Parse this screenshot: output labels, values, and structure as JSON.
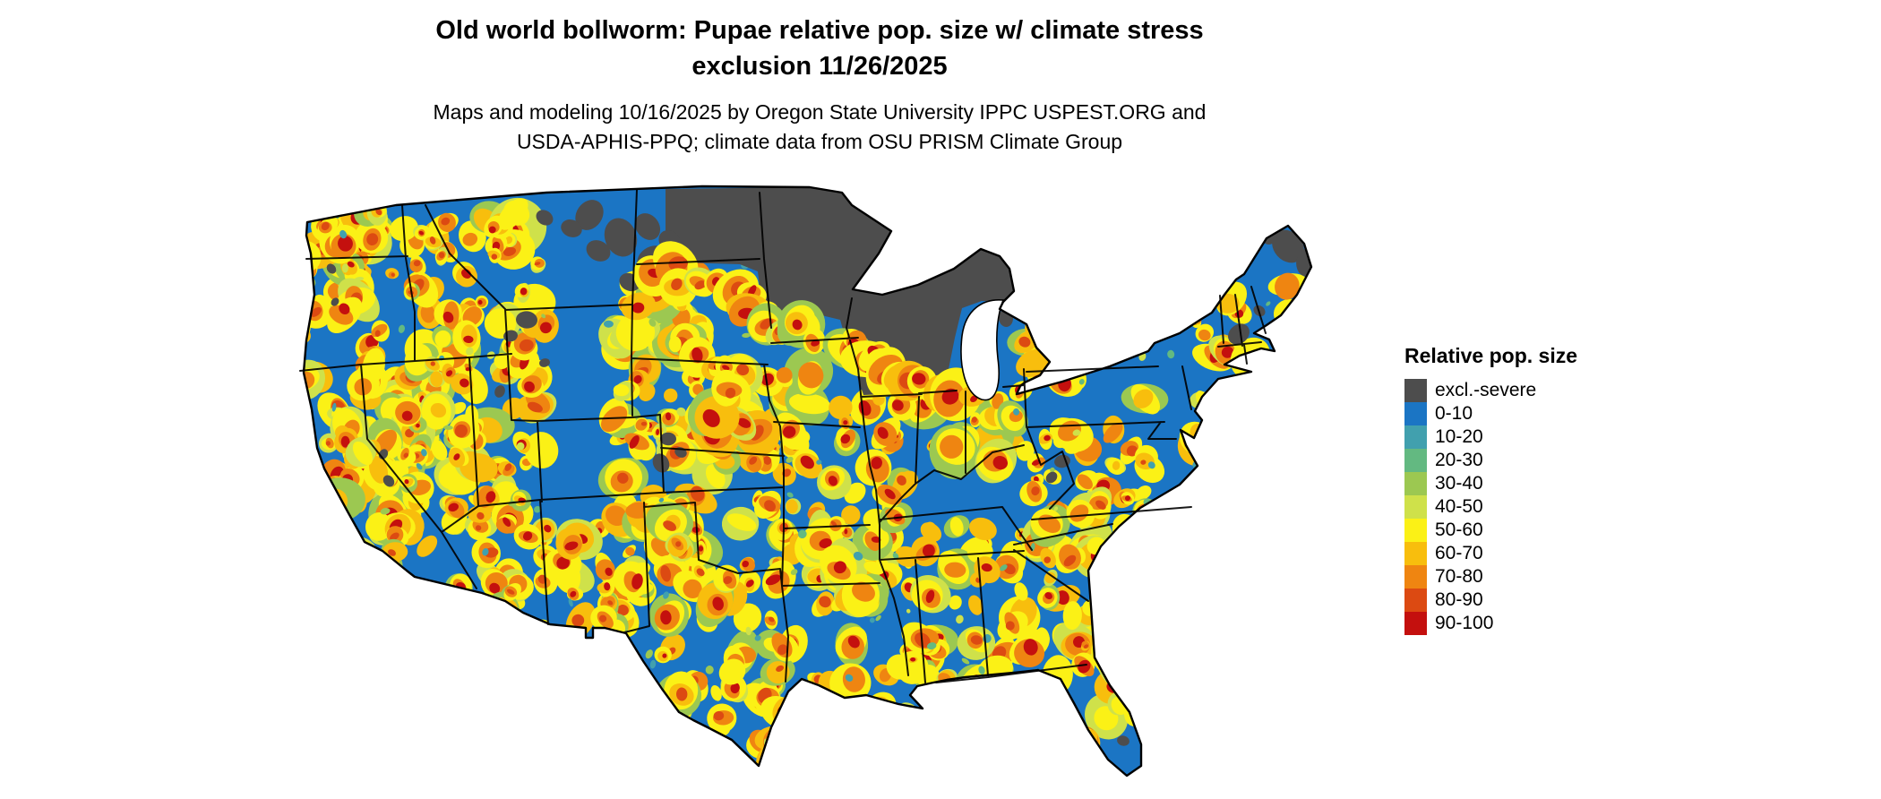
{
  "header": {
    "title_line1": "Old world bollworm: Pupae relative pop. size w/ climate stress",
    "title_line2": "exclusion 11/26/2025",
    "subtitle_line1": "Maps and modeling 10/16/2025 by Oregon State University IPPC USPEST.ORG and",
    "subtitle_line2": "USDA-APHIS-PPQ; climate data from OSU PRISM Climate Group"
  },
  "map": {
    "region": "Continental United States",
    "base_color": "#1B75C4",
    "outline_color": "#000000",
    "water_color": "#FFFFFF"
  },
  "legend": {
    "title": "Relative pop. size",
    "entries": [
      {
        "label": "excl.-severe",
        "color": "#4D4D4D"
      },
      {
        "label": "0-10",
        "color": "#1B75C4"
      },
      {
        "label": "10-20",
        "color": "#41A0AE"
      },
      {
        "label": "20-30",
        "color": "#63B981"
      },
      {
        "label": "30-40",
        "color": "#9CC851"
      },
      {
        "label": "40-50",
        "color": "#CFE14A"
      },
      {
        "label": "50-60",
        "color": "#FBF116"
      },
      {
        "label": "60-70",
        "color": "#F8BE0D"
      },
      {
        "label": "70-80",
        "color": "#EF8511"
      },
      {
        "label": "80-90",
        "color": "#DC4A12"
      },
      {
        "label": "90-100",
        "color": "#C4100E"
      }
    ]
  }
}
